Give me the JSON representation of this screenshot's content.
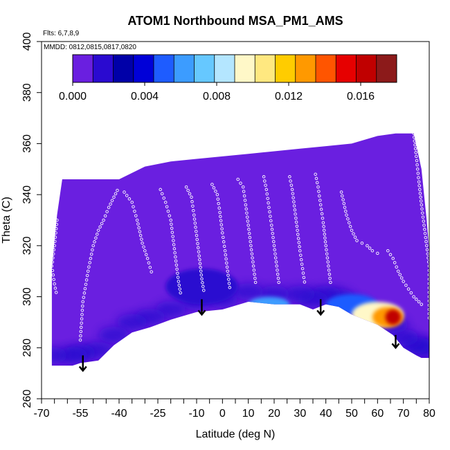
{
  "chart_data": {
    "type": "heatmap",
    "title": "ATOM1 Northbound MSA_PM1_AMS",
    "notes": {
      "flights": "Flts: 6,7,8,9",
      "dates": "MMDD: 0812,0815,0817,0820"
    },
    "xlabel": "Latitude (deg N)",
    "ylabel": "Theta (C)",
    "xlim": [
      -70,
      80
    ],
    "ylim": [
      260,
      400
    ],
    "x_ticks": [
      -70,
      -55,
      -40,
      -25,
      -10,
      0,
      10,
      20,
      30,
      40,
      50,
      60,
      70,
      80
    ],
    "x_tick_labels": [
      "-70",
      "-55",
      "-40",
      "-25",
      "-10",
      "0",
      "10",
      "20",
      "30",
      "40",
      "50",
      "60",
      "70",
      "80"
    ],
    "x_minor_ticks": [
      -65,
      -60,
      -50,
      -45,
      -35,
      -30,
      -20,
      -15,
      -5,
      5,
      15,
      25,
      35,
      45,
      55,
      65,
      75
    ],
    "y_ticks": [
      260,
      280,
      300,
      320,
      340,
      360,
      380,
      400
    ],
    "y_tick_labels": [
      "260",
      "280",
      "300",
      "320",
      "340",
      "360",
      "380",
      "400"
    ],
    "colorbar": {
      "min": 0.0,
      "max": 0.018,
      "ticks": [
        0.0,
        0.004,
        0.008,
        0.012,
        0.016
      ],
      "tick_labels": [
        "0.000",
        "0.004",
        "0.008",
        "0.012",
        "0.016"
      ],
      "colors": [
        "#6a1fe0",
        "#2a0ad0",
        "#0000a8",
        "#0000d8",
        "#1e5cff",
        "#3c9cff",
        "#66c8ff",
        "#b4e6ff",
        "#fff8c8",
        "#ffe880",
        "#ffcc00",
        "#ff9900",
        "#ff5500",
        "#e60000",
        "#c00000",
        "#8c1a1a"
      ]
    },
    "field_envelope": {
      "top": [
        [
          -66,
          311
        ],
        [
          -64,
          332
        ],
        [
          -62,
          346
        ],
        [
          -50,
          346
        ],
        [
          -40,
          346
        ],
        [
          -30,
          351
        ],
        [
          -20,
          353
        ],
        [
          -10,
          354
        ],
        [
          0,
          355
        ],
        [
          10,
          356
        ],
        [
          20,
          357
        ],
        [
          30,
          358
        ],
        [
          40,
          359
        ],
        [
          50,
          360
        ],
        [
          60,
          363
        ],
        [
          67,
          364
        ],
        [
          74,
          364
        ],
        [
          77,
          350
        ],
        [
          79,
          330
        ],
        [
          80,
          318
        ]
      ],
      "bottom": [
        [
          80,
          276
        ],
        [
          77,
          276
        ],
        [
          75,
          277
        ],
        [
          70,
          280
        ],
        [
          66,
          285
        ],
        [
          60,
          289
        ],
        [
          50,
          293
        ],
        [
          45,
          296
        ],
        [
          40,
          297
        ],
        [
          35,
          295
        ],
        [
          30,
          297
        ],
        [
          20,
          297
        ],
        [
          10,
          298
        ],
        [
          0,
          295
        ],
        [
          -10,
          294
        ],
        [
          -20,
          291
        ],
        [
          -28,
          288
        ],
        [
          -35,
          286
        ],
        [
          -42,
          281
        ],
        [
          -48,
          275
        ],
        [
          -55,
          274
        ],
        [
          -58,
          273
        ],
        [
          -66,
          273
        ]
      ]
    },
    "enhancements": [
      {
        "lat": -8,
        "theta": 304,
        "value": 0.002,
        "rx": 14,
        "ry": 7
      },
      {
        "lat": 18,
        "theta": 297,
        "value": 0.006,
        "rx": 8,
        "ry": 3
      },
      {
        "lat": 50,
        "theta": 297,
        "value": 0.005,
        "rx": 10,
        "ry": 4
      },
      {
        "lat": 60,
        "theta": 293,
        "value": 0.009,
        "rx": 10,
        "ry": 5
      },
      {
        "lat": 64,
        "theta": 292,
        "value": 0.013,
        "rx": 6,
        "ry": 4
      },
      {
        "lat": 66,
        "theta": 292,
        "value": 0.016,
        "rx": 3,
        "ry": 3
      }
    ],
    "arrows": [
      {
        "lat": -54,
        "theta_from": 277,
        "theta_to": 271
      },
      {
        "lat": -8,
        "theta_from": 299,
        "theta_to": 293
      },
      {
        "lat": 38,
        "theta_from": 299,
        "theta_to": 293
      },
      {
        "lat": 67,
        "theta_from": 285,
        "theta_to": 280
      }
    ],
    "profile_tracks": [
      [
        [
          -55,
          283
        ],
        [
          -54,
          298
        ],
        [
          -52,
          310
        ],
        [
          -50,
          320
        ],
        [
          -48,
          326
        ],
        [
          -46,
          330
        ],
        [
          -44,
          335
        ],
        [
          -42,
          339
        ],
        [
          -40,
          343
        ]
      ],
      [
        [
          -38,
          341
        ],
        [
          -35,
          337
        ],
        [
          -33,
          330
        ],
        [
          -31,
          321
        ],
        [
          -29,
          315
        ],
        [
          -27,
          308
        ]
      ],
      [
        [
          -24,
          342
        ],
        [
          -22,
          337
        ],
        [
          -20,
          330
        ],
        [
          -19,
          322
        ],
        [
          -18,
          314
        ],
        [
          -17,
          306
        ],
        [
          -16,
          300
        ]
      ],
      [
        [
          -14,
          343
        ],
        [
          -12,
          339
        ],
        [
          -11,
          332
        ],
        [
          -10,
          324
        ],
        [
          -9,
          316
        ],
        [
          -8,
          307
        ],
        [
          -7,
          301
        ]
      ],
      [
        [
          -4,
          344
        ],
        [
          -2,
          340
        ],
        [
          -1,
          333
        ],
        [
          0,
          325
        ],
        [
          1,
          318
        ],
        [
          2,
          310
        ],
        [
          3,
          302
        ]
      ],
      [
        [
          6,
          346
        ],
        [
          8,
          343
        ],
        [
          9,
          336
        ],
        [
          10,
          328
        ],
        [
          11,
          320
        ],
        [
          12,
          312
        ],
        [
          13,
          304
        ]
      ],
      [
        [
          16,
          347
        ],
        [
          17,
          342
        ],
        [
          18,
          335
        ],
        [
          19,
          328
        ],
        [
          20,
          320
        ],
        [
          21,
          312
        ],
        [
          22,
          304
        ]
      ],
      [
        [
          26,
          347
        ],
        [
          27,
          342
        ],
        [
          28,
          334
        ],
        [
          29,
          326
        ],
        [
          30,
          318
        ],
        [
          31,
          311
        ],
        [
          32,
          304
        ]
      ],
      [
        [
          36,
          348
        ],
        [
          37,
          343
        ],
        [
          38,
          336
        ],
        [
          39,
          329
        ],
        [
          40,
          320
        ],
        [
          41,
          312
        ],
        [
          42,
          304
        ]
      ],
      [
        [
          46,
          341
        ],
        [
          48,
          332
        ],
        [
          50,
          326
        ],
        [
          52,
          322
        ],
        [
          54,
          321
        ],
        [
          56,
          320
        ],
        [
          58,
          318
        ],
        [
          60,
          317
        ],
        [
          62,
          316
        ]
      ],
      [
        [
          64,
          318
        ],
        [
          66,
          315
        ],
        [
          68,
          310
        ],
        [
          70,
          306
        ],
        [
          72,
          303
        ],
        [
          74,
          300
        ],
        [
          76,
          298
        ],
        [
          78,
          296
        ]
      ],
      [
        [
          -64,
          330
        ],
        [
          -65,
          320
        ],
        [
          -66,
          312
        ],
        [
          -65,
          305
        ],
        [
          -64,
          300
        ]
      ],
      [
        [
          74,
          364
        ],
        [
          75,
          355
        ],
        [
          76,
          345
        ],
        [
          77,
          336
        ],
        [
          78,
          328
        ],
        [
          79,
          320
        ],
        [
          80,
          312
        ],
        [
          80,
          300
        ],
        [
          80,
          290
        ]
      ]
    ]
  }
}
